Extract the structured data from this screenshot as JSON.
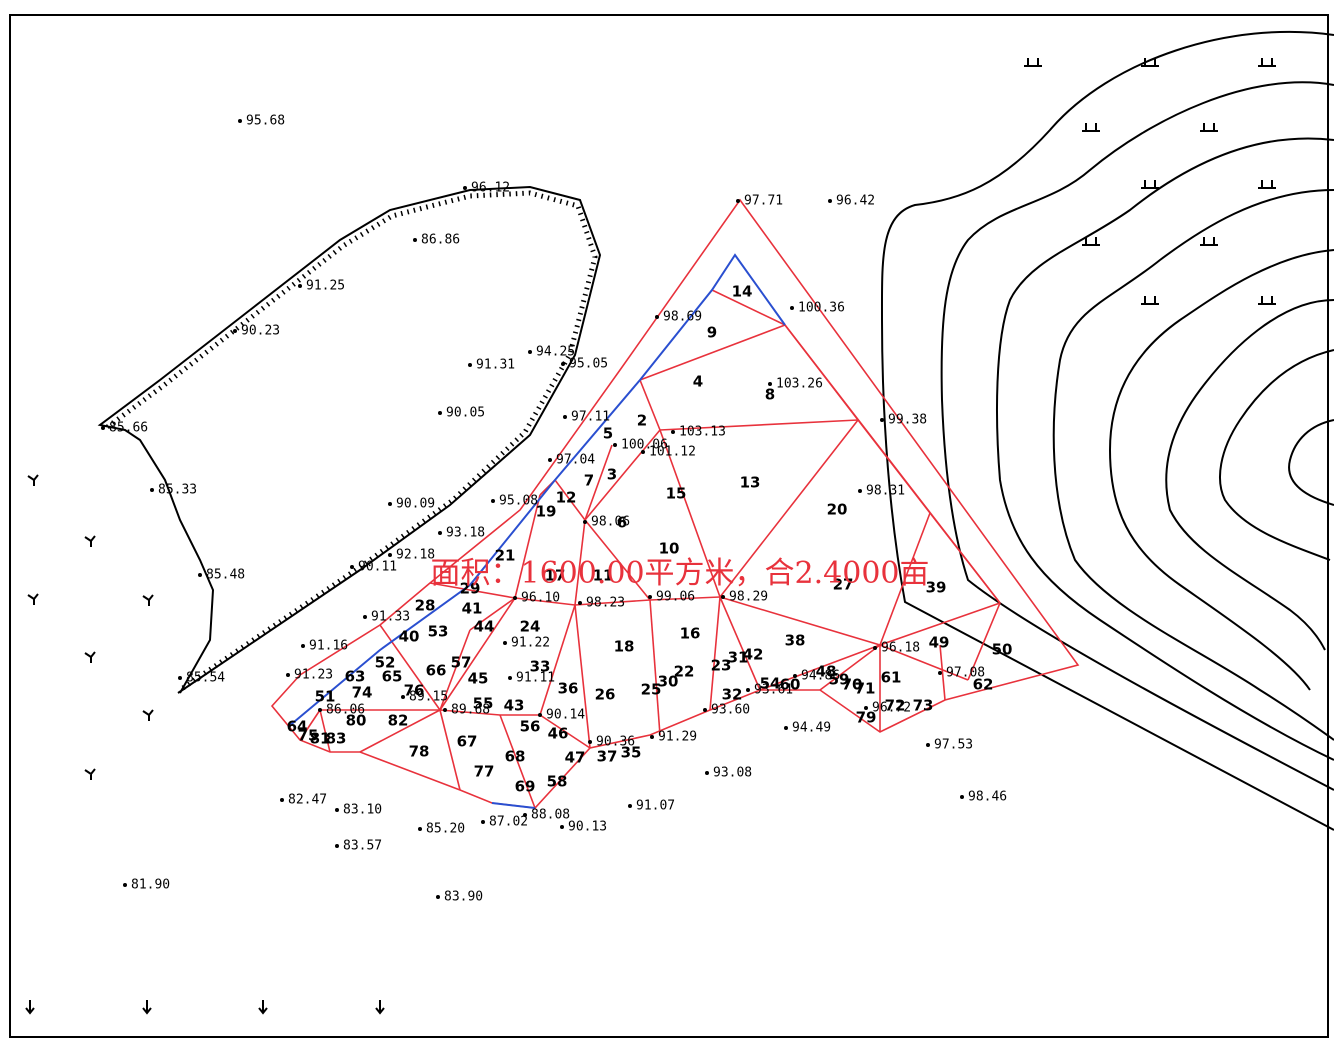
{
  "area_label": "面积：1600.00平方米，合2.4000亩",
  "elevation_points": [
    "95.68",
    "96.12",
    "86.86",
    "91.25",
    "90.23",
    "91.31",
    "94.25",
    "95.05",
    "90.05",
    "97.11",
    "85.66",
    "97.04",
    "85.33",
    "90.09",
    "95.08",
    "93.18",
    "92.18",
    "90.11",
    "85.48",
    "91.33",
    "91.16",
    "91.23",
    "85.54",
    "82.47",
    "83.10",
    "85.20",
    "87.02",
    "88.08",
    "90.13",
    "91.07",
    "83.57",
    "81.90",
    "83.90",
    "93.08",
    "94.49",
    "97.53",
    "98.46",
    "97.71",
    "96.42",
    "100.36",
    "98.69",
    "103.26",
    "103.13",
    "100.06",
    "101.12",
    "99.38",
    "98.31",
    "98.06",
    "96.10",
    "98.23",
    "99.06",
    "98.29",
    "96.18",
    "97.08",
    "93.60",
    "93.61",
    "94.86",
    "96.72",
    "91.11",
    "89.68",
    "90.14",
    "90.36",
    "91.29",
    "86.06",
    "91.22",
    "89.15"
  ],
  "triangle_labels": [
    "14",
    "9",
    "4",
    "8",
    "2",
    "5",
    "3",
    "7",
    "15",
    "13",
    "12",
    "6",
    "20",
    "19",
    "10",
    "21",
    "17",
    "11",
    "27",
    "39",
    "29",
    "28",
    "41",
    "24",
    "44",
    "16",
    "38",
    "49",
    "50",
    "40",
    "53",
    "18",
    "42",
    "31",
    "23",
    "57",
    "66",
    "33",
    "22",
    "30",
    "25",
    "61",
    "62",
    "52",
    "63",
    "65",
    "45",
    "36",
    "26",
    "48",
    "59",
    "70",
    "71",
    "54",
    "60",
    "74",
    "76",
    "32",
    "51",
    "55",
    "43",
    "73",
    "72",
    "80",
    "82",
    "79",
    "56",
    "46",
    "64",
    "75",
    "81",
    "83",
    "67",
    "78",
    "37",
    "35",
    "68",
    "47",
    "77",
    "69",
    "58"
  ]
}
